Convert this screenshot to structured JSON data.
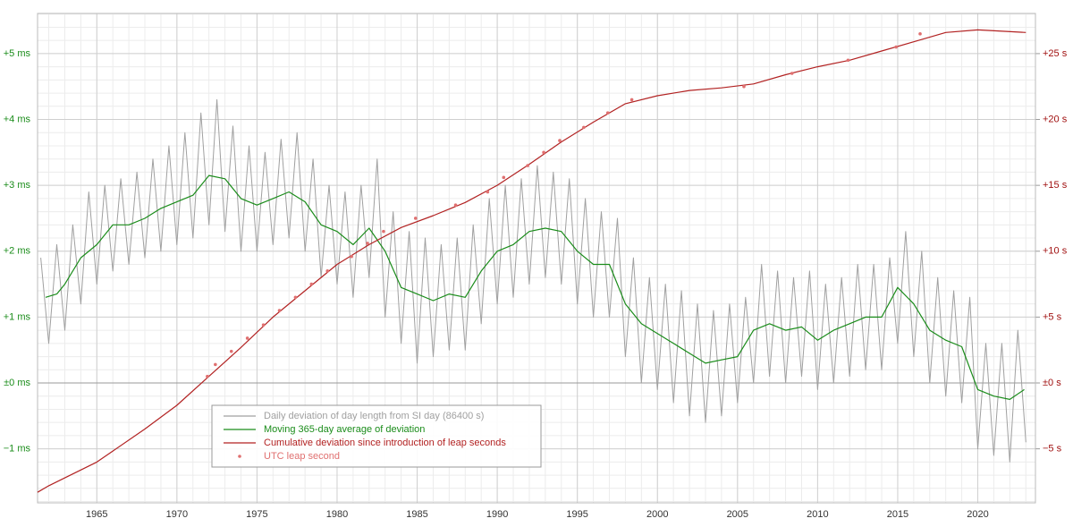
{
  "chart_data": {
    "type": "line",
    "xlim": [
      1961.3,
      2023.6
    ],
    "xticks": [
      1965,
      1970,
      1975,
      1980,
      1985,
      1990,
      1995,
      2000,
      2005,
      2010,
      2015,
      2020
    ],
    "ylim": [
      -1.82,
      5.61
    ],
    "yticks": [
      {
        "value": -1,
        "label": "−1 ms"
      },
      {
        "value": 0,
        "label": "±0 ms"
      },
      {
        "value": 1,
        "label": "+1 ms"
      },
      {
        "value": 2,
        "label": "+2 ms"
      },
      {
        "value": 3,
        "label": "+3 ms"
      },
      {
        "value": 4,
        "label": "+4 ms"
      },
      {
        "value": 5,
        "label": "+5 ms"
      }
    ],
    "y2lim": [
      -9.1,
      28.05
    ],
    "y2ticks": [
      {
        "value": -5,
        "label": "−5 s"
      },
      {
        "value": 0,
        "label": "±0 s"
      },
      {
        "value": 5,
        "label": "+5 s"
      },
      {
        "value": 10,
        "label": "+10 s"
      },
      {
        "value": 15,
        "label": "+15 s"
      },
      {
        "value": 20,
        "label": "+20 s"
      },
      {
        "value": 25,
        "label": "+25 s"
      }
    ],
    "grid": true,
    "series": [
      {
        "name": "Daily deviation of day length from SI day (86400 s)",
        "type": "line",
        "color": "#a0a0a0",
        "x": [
          1961.5,
          1962.0,
          1962.5,
          1963.0,
          1963.5,
          1964.0,
          1964.5,
          1965.0,
          1965.5,
          1966.0,
          1966.5,
          1967.0,
          1967.5,
          1968.0,
          1968.5,
          1969.0,
          1969.5,
          1970.0,
          1970.5,
          1971.0,
          1971.5,
          1972.0,
          1972.5,
          1973.0,
          1973.5,
          1974.0,
          1974.5,
          1975.0,
          1975.5,
          1976.0,
          1976.5,
          1977.0,
          1977.5,
          1978.0,
          1978.5,
          1979.0,
          1979.5,
          1980.0,
          1980.5,
          1981.0,
          1981.5,
          1982.0,
          1982.5,
          1983.0,
          1983.5,
          1984.0,
          1984.5,
          1985.0,
          1985.5,
          1986.0,
          1986.5,
          1987.0,
          1987.5,
          1988.0,
          1988.5,
          1989.0,
          1989.5,
          1990.0,
          1990.5,
          1991.0,
          1991.5,
          1992.0,
          1992.5,
          1993.0,
          1993.5,
          1994.0,
          1994.5,
          1995.0,
          1995.5,
          1996.0,
          1996.5,
          1997.0,
          1997.5,
          1998.0,
          1998.5,
          1999.0,
          1999.5,
          2000.0,
          2000.5,
          2001.0,
          2001.5,
          2002.0,
          2002.5,
          2003.0,
          2003.5,
          2004.0,
          2004.5,
          2005.0,
          2005.5,
          2006.0,
          2006.5,
          2007.0,
          2007.5,
          2008.0,
          2008.5,
          2009.0,
          2009.5,
          2010.0,
          2010.5,
          2011.0,
          2011.5,
          2012.0,
          2012.5,
          2013.0,
          2013.5,
          2014.0,
          2014.5,
          2015.0,
          2015.5,
          2016.0,
          2016.5,
          2017.0,
          2017.5,
          2018.0,
          2018.5,
          2019.0,
          2019.5,
          2020.0,
          2020.5,
          2021.0,
          2021.5,
          2022.0,
          2022.5,
          2023.0
        ],
        "values": [
          1.9,
          0.6,
          2.1,
          0.8,
          2.4,
          1.2,
          2.9,
          1.5,
          3.0,
          1.7,
          3.1,
          1.8,
          3.2,
          1.9,
          3.4,
          2.0,
          3.6,
          2.1,
          3.8,
          2.2,
          4.1,
          2.4,
          4.3,
          2.3,
          3.9,
          2.0,
          3.6,
          2.0,
          3.5,
          2.1,
          3.7,
          2.2,
          3.8,
          2.0,
          3.4,
          1.6,
          3.0,
          1.5,
          2.9,
          1.3,
          3.0,
          1.6,
          3.4,
          1.0,
          2.6,
          0.6,
          2.3,
          0.3,
          2.2,
          0.4,
          2.1,
          0.5,
          2.2,
          0.5,
          2.4,
          0.9,
          2.8,
          1.2,
          3.0,
          1.3,
          3.1,
          1.5,
          3.3,
          1.6,
          3.2,
          1.5,
          3.1,
          1.2,
          2.8,
          1.0,
          2.6,
          1.0,
          2.5,
          0.4,
          1.9,
          0.0,
          1.6,
          -0.1,
          1.5,
          -0.3,
          1.4,
          -0.5,
          1.2,
          -0.6,
          1.1,
          -0.5,
          1.2,
          -0.3,
          1.3,
          0.0,
          1.8,
          0.1,
          1.7,
          0.0,
          1.6,
          0.1,
          1.7,
          -0.1,
          1.5,
          0.0,
          1.6,
          0.1,
          1.8,
          0.2,
          1.8,
          0.2,
          1.9,
          0.6,
          2.3,
          0.4,
          2.0,
          0.0,
          1.6,
          -0.2,
          1.4,
          -0.3,
          1.3,
          -1.0,
          0.6,
          -1.1,
          0.6,
          -1.2,
          0.8,
          -0.9
        ]
      },
      {
        "name": "Moving 365-day average of deviation",
        "type": "line",
        "color": "#1a8c1a",
        "x": [
          1961.8,
          1962.5,
          1963,
          1964,
          1965,
          1966,
          1967,
          1968,
          1969,
          1970,
          1971,
          1972,
          1973,
          1974,
          1975,
          1976,
          1977,
          1978,
          1979,
          1980,
          1981,
          1982,
          1983,
          1984,
          1985,
          1986,
          1987,
          1988,
          1989,
          1990,
          1991,
          1992,
          1993,
          1994,
          1995,
          1996,
          1997,
          1998,
          1999,
          2000,
          2001,
          2002,
          2003,
          2004,
          2005,
          2006,
          2007,
          2008,
          2009,
          2010,
          2011,
          2012,
          2013,
          2014,
          2015,
          2016,
          2017,
          2018,
          2019,
          2020,
          2021,
          2022,
          2022.9
        ],
        "values": [
          1.3,
          1.35,
          1.5,
          1.9,
          2.1,
          2.4,
          2.4,
          2.5,
          2.65,
          2.75,
          2.85,
          3.15,
          3.1,
          2.8,
          2.7,
          2.8,
          2.9,
          2.75,
          2.4,
          2.3,
          2.1,
          2.35,
          2.0,
          1.45,
          1.35,
          1.25,
          1.35,
          1.3,
          1.7,
          2.0,
          2.1,
          2.3,
          2.35,
          2.3,
          2.0,
          1.8,
          1.8,
          1.2,
          0.9,
          0.75,
          0.6,
          0.45,
          0.3,
          0.35,
          0.4,
          0.8,
          0.9,
          0.8,
          0.85,
          0.65,
          0.8,
          0.9,
          1.0,
          1.0,
          1.45,
          1.2,
          0.8,
          0.65,
          0.55,
          -0.1,
          -0.2,
          -0.25,
          -0.1
        ]
      },
      {
        "name": "Cumulative deviation since introduction of leap seconds",
        "type": "line",
        "color": "#b22222",
        "axis": "y2",
        "x": [
          1961.3,
          1962,
          1965,
          1968,
          1970,
          1972,
          1974,
          1976,
          1978,
          1980,
          1982,
          1984,
          1986,
          1988,
          1990,
          1992,
          1994,
          1996,
          1998,
          2000,
          2002,
          2004,
          2006,
          2008,
          2010,
          2012,
          2014,
          2016,
          2018,
          2020,
          2023
        ],
        "values": [
          -8.3,
          -7.8,
          -6.0,
          -3.5,
          -1.7,
          0.5,
          2.7,
          5.0,
          7.0,
          9.0,
          10.5,
          11.8,
          12.7,
          13.7,
          15.0,
          16.6,
          18.3,
          19.8,
          21.2,
          21.8,
          22.2,
          22.4,
          22.7,
          23.4,
          24.0,
          24.5,
          25.2,
          25.9,
          26.6,
          26.8,
          26.6
        ]
      },
      {
        "name": "UTC leap second",
        "type": "scatter",
        "color": "#e07070",
        "axis": "y2",
        "x": [
          1971.9,
          1972.4,
          1973.4,
          1974.4,
          1975.4,
          1976.4,
          1977.4,
          1978.4,
          1979.4,
          1980.9,
          1981.9,
          1982.9,
          1984.9,
          1987.4,
          1989.4,
          1990.4,
          1991.9,
          1992.9,
          1993.9,
          1995.4,
          1996.9,
          1998.4,
          2005.4,
          2008.4,
          2011.9,
          2014.9,
          2016.4
        ],
        "values": [
          0.5,
          1.4,
          2.4,
          3.4,
          4.4,
          5.5,
          6.5,
          7.5,
          8.5,
          9.6,
          10.6,
          11.5,
          12.5,
          13.5,
          14.5,
          15.6,
          16.5,
          17.5,
          18.4,
          19.4,
          20.5,
          21.5,
          22.5,
          23.5,
          24.5,
          25.5,
          26.5
        ]
      }
    ]
  }
}
